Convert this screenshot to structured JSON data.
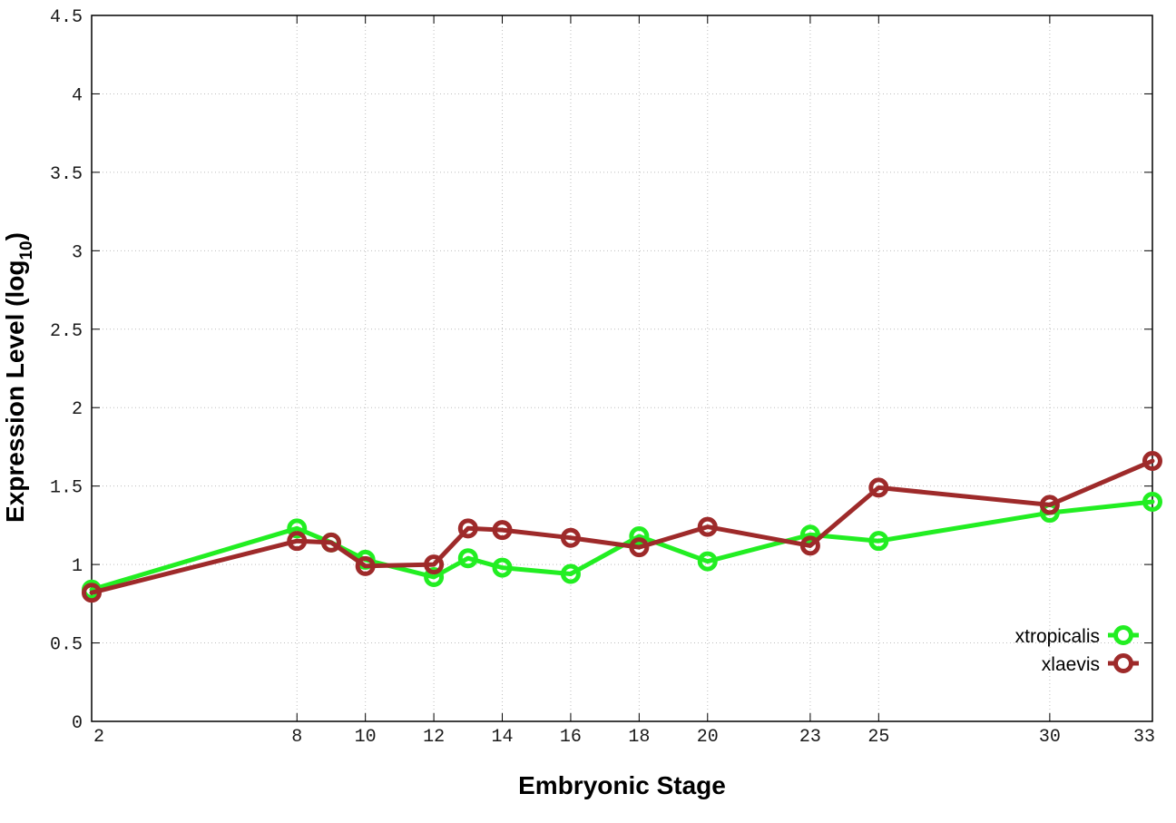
{
  "chart_data": {
    "type": "line",
    "xlabel": "Embryonic Stage",
    "ylabel": "Expression Level (log",
    "ylabel_sub": "10",
    "ylabel_close": ")",
    "x": [
      2,
      8,
      9,
      10,
      12,
      13,
      14,
      16,
      18,
      20,
      23,
      25,
      30,
      33
    ],
    "x_ticks": [
      2,
      8,
      10,
      12,
      14,
      16,
      18,
      20,
      23,
      25,
      30,
      33
    ],
    "x_tick_labels": [
      "2",
      "8",
      "10",
      "12",
      "14",
      "16",
      "18",
      "20",
      "23",
      "25",
      "30",
      "33"
    ],
    "xlim": [
      2,
      33
    ],
    "y_ticks": [
      0,
      0.5,
      1,
      1.5,
      2,
      2.5,
      3,
      3.5,
      4,
      4.5
    ],
    "y_tick_labels": [
      "0",
      "0.5",
      "1",
      "1.5",
      "2",
      "2.5",
      "3",
      "3.5",
      "4",
      "4.5"
    ],
    "ylim": [
      0,
      4.5
    ],
    "grid": true,
    "legend_position": "bottom-right",
    "series": [
      {
        "name": "xtropicalis",
        "color": "#22ee22",
        "values": [
          0.84,
          1.23,
          1.14,
          1.03,
          0.92,
          1.04,
          0.98,
          0.94,
          1.18,
          1.02,
          1.19,
          1.15,
          1.33,
          1.4
        ]
      },
      {
        "name": "xlaevis",
        "color": "#9e2a2a",
        "values": [
          0.82,
          1.15,
          1.14,
          0.99,
          1.0,
          1.23,
          1.22,
          1.17,
          1.11,
          1.24,
          1.12,
          1.49,
          1.38,
          1.66
        ]
      }
    ]
  }
}
